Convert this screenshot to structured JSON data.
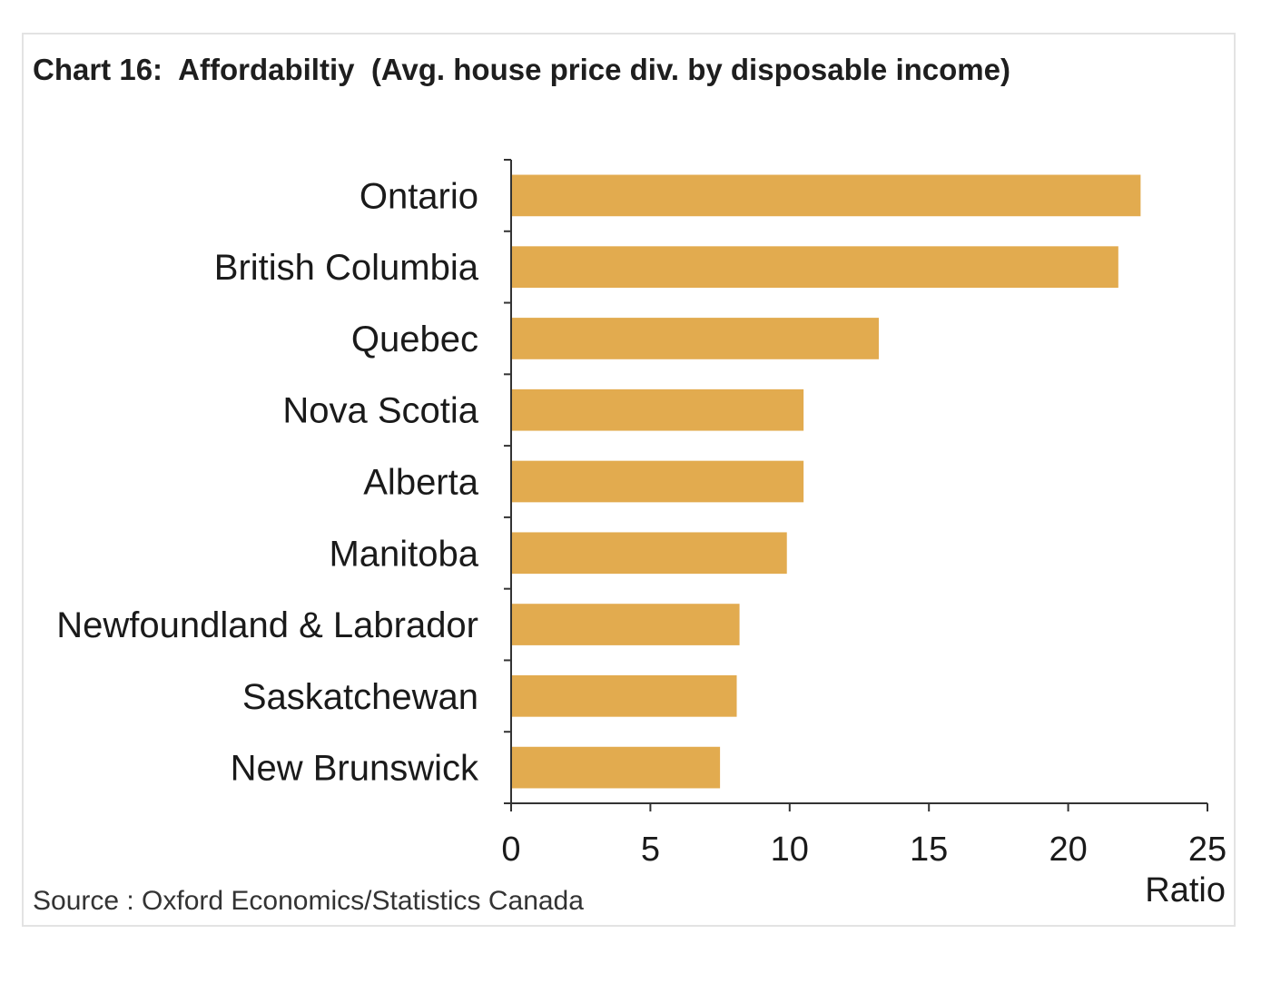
{
  "chart": {
    "title": "Chart 16:  Affordabiltiy  (Avg. house price div. by disposable income)",
    "source": "Source : Oxford Economics/Statistics Canada"
  },
  "chart_data": {
    "type": "bar",
    "orientation": "horizontal",
    "title": "Chart 16:  Affordabiltiy  (Avg. house price div. by disposable income)",
    "xlabel": "Ratio",
    "ylabel": "",
    "categories": [
      "Ontario",
      "British Columbia",
      "Quebec",
      "Nova Scotia",
      "Alberta",
      "Manitoba",
      "Newfoundland & Labrador",
      "Saskatchewan",
      "New Brunswick"
    ],
    "values": [
      22.6,
      21.8,
      13.2,
      10.5,
      10.5,
      9.9,
      8.2,
      8.1,
      7.5
    ],
    "xlim": [
      0,
      25
    ],
    "xticks": [
      "0",
      "5",
      "10",
      "15",
      "20",
      "25"
    ],
    "grid": false,
    "legend": "none",
    "bar_color": "#e2ab4f"
  }
}
